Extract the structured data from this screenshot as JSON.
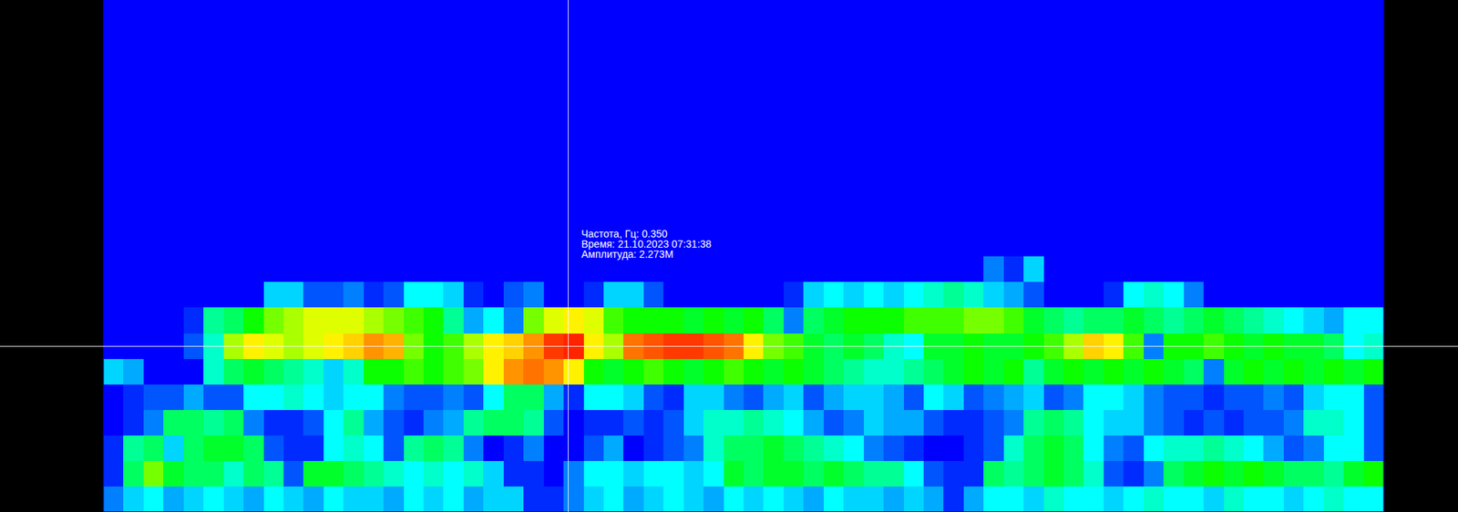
{
  "chart_data": {
    "type": "heatmap",
    "tick_labels": false,
    "x": [
      0,
      1,
      2,
      3,
      4,
      5,
      6,
      7,
      8,
      9,
      10,
      11,
      12,
      13,
      14,
      15,
      16,
      17,
      18,
      19,
      20,
      21,
      22,
      23,
      24,
      25,
      26,
      27,
      28,
      29,
      30,
      31,
      32,
      33,
      34,
      35,
      36,
      37,
      38,
      39,
      40,
      41,
      42,
      43,
      44,
      45,
      46,
      47,
      48,
      49,
      50,
      51,
      52,
      53,
      54,
      55,
      56,
      57,
      58,
      59,
      60,
      61,
      62,
      63
    ],
    "xlim": [
      0,
      64
    ],
    "y": [
      0.05,
      0.1,
      0.15,
      0.2,
      0.25,
      0.3,
      0.35,
      0.4,
      0.45,
      0.5,
      0.55,
      0.6,
      0.65,
      0.7,
      0.75,
      0.8,
      0.85,
      0.9,
      0.95,
      1.0
    ],
    "ylim": [
      0.025,
      1.025
    ],
    "zlim": [
      0,
      2.4
    ],
    "cells": [
      [
        0.3,
        0.5,
        0.6,
        0.4,
        0.5,
        0.6,
        0.5,
        0.4,
        0.6,
        0.5,
        0.4,
        0.6,
        0.5,
        0.5,
        0.4,
        0.6,
        0.5,
        0.6,
        0.4,
        0.5,
        0.5,
        0.1,
        0.1,
        0.3,
        0.5,
        0.6,
        0.4,
        0.5,
        0.6,
        0.5,
        0.4,
        0.6,
        0.5,
        0.6,
        0.5,
        0.4,
        0.6,
        0.5,
        0.5,
        0.4,
        0.5,
        0.4,
        0.1,
        0.4,
        0.6,
        0.6,
        0.5,
        0.7,
        0.6,
        0.6,
        0.5,
        0.6,
        0.7,
        0.6,
        0.6,
        0.5,
        0.7,
        0.6,
        0.6,
        0.5,
        0.6,
        0.7,
        0.6,
        0.6
      ],
      [
        0.1,
        0.9,
        1.3,
        1.0,
        0.9,
        0.9,
        0.7,
        0.9,
        0.8,
        0.2,
        1.0,
        1.0,
        0.9,
        0.8,
        0.7,
        0.6,
        0.7,
        0.6,
        0.7,
        0.5,
        0.1,
        0.1,
        0,
        0.3,
        0.6,
        0.6,
        0.5,
        0.6,
        0.6,
        0.5,
        0.6,
        1.0,
        0.9,
        1.0,
        1.0,
        0.9,
        1.0,
        0.9,
        0.8,
        0.8,
        0.6,
        0.2,
        0.1,
        0.1,
        0.9,
        0.8,
        0.9,
        1.0,
        0.9,
        0.7,
        0.2,
        0.1,
        0.3,
        0.9,
        1.0,
        1.1,
        1.0,
        1.1,
        1.0,
        0.9,
        0.9,
        0.8,
        1.0,
        1.1
      ],
      [
        0.1,
        0.8,
        0.9,
        0.5,
        0.9,
        1.0,
        1.0,
        0.9,
        0.2,
        0.1,
        0.1,
        0.6,
        0.7,
        0.6,
        0.2,
        0.8,
        0.9,
        0.8,
        0.3,
        0,
        0.1,
        0.3,
        0,
        0,
        0.2,
        0.4,
        0,
        0.1,
        0.2,
        0.3,
        0.7,
        0.9,
        0.9,
        1.0,
        0.9,
        0.8,
        0.7,
        0.6,
        0.3,
        0.2,
        0.1,
        0,
        0,
        0.1,
        0.2,
        0.7,
        0.9,
        1.0,
        0.9,
        0.6,
        0.3,
        0.2,
        0.6,
        0.7,
        0.7,
        0.8,
        0.7,
        0.6,
        0.4,
        0.2,
        0.3,
        0.6,
        0.6,
        0.2
      ],
      [
        0,
        0.1,
        0.3,
        0.9,
        0.9,
        0.8,
        0.9,
        0.3,
        0.1,
        0.1,
        0.2,
        0.6,
        0.8,
        0.4,
        0.2,
        0.1,
        0.3,
        0.4,
        0.8,
        0.9,
        0.9,
        0.8,
        0.2,
        0,
        0.1,
        0.1,
        0.2,
        0.1,
        0.2,
        0.5,
        0.7,
        0.7,
        0.8,
        0.7,
        0.6,
        0.4,
        0.2,
        0.3,
        0.5,
        0.4,
        0.4,
        0.2,
        0.1,
        0.1,
        0.2,
        0.3,
        0.8,
        0.9,
        0.8,
        0.6,
        0.5,
        0.5,
        0.3,
        0.2,
        0.1,
        0.2,
        0.1,
        0.2,
        0.2,
        0.3,
        0.7,
        0.7,
        0.6,
        0.2
      ],
      [
        0,
        0.1,
        0.2,
        0.2,
        0.4,
        0.2,
        0.2,
        0.6,
        0.6,
        0.7,
        0.6,
        0.5,
        0.6,
        0.6,
        0.3,
        0.2,
        0.2,
        0.3,
        0.2,
        0.6,
        0.9,
        0.9,
        0.4,
        0.1,
        0.6,
        0.6,
        0.5,
        0.2,
        0.1,
        0.5,
        0.5,
        0.3,
        0.2,
        0.4,
        0.5,
        0.2,
        0.4,
        0.5,
        0.5,
        0.4,
        0.2,
        0.6,
        0.5,
        0.2,
        0.3,
        0.4,
        0.5,
        0.2,
        0.3,
        0.6,
        0.6,
        0.5,
        0.3,
        0.2,
        0.2,
        0.1,
        0.2,
        0.2,
        0.3,
        0.2,
        0.5,
        0.6,
        0.6,
        0.2
      ],
      [
        0.5,
        0.4,
        0,
        0,
        0,
        0.7,
        0.9,
        1.0,
        0.9,
        0.8,
        0.7,
        0.5,
        0.7,
        1.1,
        1.1,
        1.2,
        1.1,
        1.2,
        1.3,
        1.6,
        1.9,
        2.0,
        1.9,
        1.6,
        1.1,
        1.0,
        1.1,
        1.2,
        1.1,
        1.0,
        1.1,
        1.2,
        1.1,
        1.0,
        1.1,
        1.0,
        0.9,
        0.8,
        0.7,
        0.7,
        0.8,
        0.9,
        1.0,
        1.1,
        1.0,
        1.1,
        0.8,
        1.0,
        1.1,
        1.0,
        1.1,
        1.0,
        1.1,
        1.0,
        0.9,
        0.3,
        1.0,
        1.1,
        1.0,
        1.1,
        1.0,
        1.1,
        1.0,
        1.1
      ],
      [
        0,
        0,
        0,
        0,
        0.2,
        0.7,
        1.4,
        1.6,
        1.5,
        1.4,
        1.5,
        1.6,
        1.7,
        1.9,
        1.8,
        1.3,
        1.1,
        1.2,
        1.4,
        1.6,
        1.7,
        1.9,
        2.2,
        2.273,
        1.6,
        1.4,
        2.0,
        2.1,
        2.2,
        2.2,
        2.1,
        2.0,
        1.6,
        1.3,
        1.2,
        1.0,
        0.9,
        1.0,
        0.9,
        0.7,
        0.6,
        1.0,
        1.0,
        1.1,
        1.0,
        1.0,
        1.1,
        1.2,
        1.4,
        1.7,
        1.6,
        1.2,
        0.3,
        1.1,
        1.1,
        1.2,
        1.1,
        1.0,
        1.1,
        1.0,
        1.0,
        0.9,
        0.6,
        0.7
      ],
      [
        0,
        0,
        0,
        0,
        0.1,
        0.8,
        0.9,
        1.1,
        1.3,
        1.4,
        1.5,
        1.5,
        1.5,
        1.4,
        1.3,
        1.2,
        1.1,
        0.8,
        0.4,
        0.6,
        0.3,
        1.3,
        1.5,
        1.6,
        1.5,
        1.2,
        1.1,
        1.1,
        1.1,
        1.0,
        1.1,
        1.0,
        1.1,
        0.9,
        0.3,
        0.9,
        1.0,
        1.1,
        1.1,
        1.1,
        1.2,
        1.2,
        1.2,
        1.3,
        1.3,
        1.2,
        1.0,
        0.9,
        0.8,
        0.9,
        0.9,
        1.0,
        0.9,
        0.8,
        0.9,
        1.0,
        0.9,
        0.8,
        0.7,
        0.6,
        0.5,
        0.4,
        0.6,
        0.6
      ],
      [
        0,
        0,
        0,
        0,
        0,
        0,
        0,
        0,
        0.5,
        0.5,
        0.2,
        0.2,
        0.3,
        0.1,
        0.2,
        0.6,
        0.6,
        0.5,
        0.1,
        0,
        0.2,
        0.3,
        0,
        0,
        0.1,
        0.5,
        0.5,
        0.2,
        0,
        0,
        0,
        0,
        0,
        0,
        0.1,
        0.5,
        0.6,
        0.5,
        0.6,
        0.5,
        0.6,
        0.7,
        0.8,
        0.7,
        0.5,
        0.4,
        0.2,
        0,
        0,
        0,
        0.1,
        0.6,
        0.7,
        0.6,
        0.3,
        0,
        0,
        0,
        0,
        0,
        0,
        0,
        0,
        0
      ],
      [
        0,
        0,
        0,
        0,
        0,
        0,
        0,
        0,
        0,
        0,
        0,
        0,
        0,
        0,
        0,
        0,
        0,
        0,
        0,
        0,
        0,
        0,
        0,
        0,
        0,
        0,
        0,
        0,
        0,
        0,
        0,
        0,
        0,
        0,
        0,
        0,
        0,
        0,
        0,
        0,
        0,
        0,
        0,
        0,
        0.3,
        0.1,
        0.5,
        0,
        0,
        0,
        0,
        0,
        0,
        0,
        0,
        0,
        0,
        0,
        0,
        0,
        0,
        0,
        0,
        0
      ],
      [
        0,
        0,
        0,
        0,
        0,
        0,
        0,
        0,
        0,
        0,
        0,
        0,
        0,
        0,
        0,
        0,
        0,
        0,
        0,
        0,
        0,
        0,
        0,
        0,
        0,
        0,
        0,
        0,
        0,
        0,
        0,
        0,
        0,
        0,
        0,
        0,
        0,
        0,
        0,
        0,
        0,
        0,
        0,
        0,
        0,
        0,
        0,
        0,
        0,
        0,
        0,
        0,
        0,
        0,
        0,
        0,
        0,
        0,
        0,
        0,
        0,
        0,
        0,
        0
      ],
      [
        0,
        0,
        0,
        0,
        0,
        0,
        0,
        0,
        0,
        0,
        0,
        0,
        0,
        0,
        0,
        0,
        0,
        0,
        0,
        0,
        0,
        0,
        0,
        0,
        0,
        0,
        0,
        0,
        0,
        0,
        0,
        0,
        0,
        0,
        0,
        0,
        0,
        0,
        0,
        0,
        0,
        0,
        0,
        0,
        0,
        0,
        0,
        0,
        0,
        0,
        0,
        0,
        0,
        0,
        0,
        0,
        0,
        0,
        0,
        0,
        0,
        0,
        0,
        0
      ],
      [
        0,
        0,
        0,
        0,
        0,
        0,
        0,
        0,
        0,
        0,
        0,
        0,
        0,
        0,
        0,
        0,
        0,
        0,
        0,
        0,
        0,
        0,
        0,
        0,
        0,
        0,
        0,
        0,
        0,
        0,
        0,
        0,
        0,
        0,
        0,
        0,
        0,
        0,
        0,
        0,
        0,
        0,
        0,
        0,
        0,
        0,
        0,
        0,
        0,
        0,
        0,
        0,
        0,
        0,
        0,
        0,
        0,
        0,
        0,
        0,
        0,
        0,
        0,
        0
      ],
      [
        0,
        0,
        0,
        0,
        0,
        0,
        0,
        0,
        0,
        0,
        0,
        0,
        0,
        0,
        0,
        0,
        0,
        0,
        0,
        0,
        0,
        0,
        0,
        0,
        0,
        0,
        0,
        0,
        0,
        0,
        0,
        0,
        0,
        0,
        0,
        0,
        0,
        0,
        0,
        0,
        0,
        0,
        0,
        0,
        0,
        0,
        0,
        0,
        0,
        0,
        0,
        0,
        0,
        0,
        0,
        0,
        0,
        0,
        0,
        0,
        0,
        0,
        0,
        0
      ],
      [
        0,
        0,
        0,
        0,
        0,
        0,
        0,
        0,
        0,
        0,
        0,
        0,
        0,
        0,
        0,
        0,
        0,
        0,
        0,
        0,
        0,
        0,
        0,
        0,
        0,
        0,
        0,
        0,
        0,
        0,
        0,
        0,
        0,
        0,
        0,
        0,
        0,
        0,
        0,
        0,
        0,
        0,
        0,
        0,
        0,
        0,
        0,
        0,
        0,
        0,
        0,
        0,
        0,
        0,
        0,
        0,
        0,
        0,
        0,
        0,
        0,
        0,
        0,
        0
      ],
      [
        0,
        0,
        0,
        0,
        0,
        0,
        0,
        0,
        0,
        0,
        0,
        0,
        0,
        0,
        0,
        0,
        0,
        0,
        0,
        0,
        0,
        0,
        0,
        0,
        0,
        0,
        0,
        0,
        0,
        0,
        0,
        0,
        0,
        0,
        0,
        0,
        0,
        0,
        0,
        0,
        0,
        0,
        0,
        0,
        0,
        0,
        0,
        0,
        0,
        0,
        0,
        0,
        0,
        0,
        0,
        0,
        0,
        0,
        0,
        0,
        0,
        0,
        0,
        0
      ],
      [
        0,
        0,
        0,
        0,
        0,
        0,
        0,
        0,
        0,
        0,
        0,
        0,
        0,
        0,
        0,
        0,
        0,
        0,
        0,
        0,
        0,
        0,
        0,
        0,
        0,
        0,
        0,
        0,
        0,
        0,
        0,
        0,
        0,
        0,
        0,
        0,
        0,
        0,
        0,
        0,
        0,
        0,
        0,
        0,
        0,
        0,
        0,
        0,
        0,
        0,
        0,
        0,
        0,
        0,
        0,
        0,
        0,
        0,
        0,
        0,
        0,
        0,
        0,
        0
      ],
      [
        0,
        0,
        0,
        0,
        0,
        0,
        0,
        0,
        0,
        0,
        0,
        0,
        0,
        0,
        0,
        0,
        0,
        0,
        0,
        0,
        0,
        0,
        0,
        0,
        0,
        0,
        0,
        0,
        0,
        0,
        0,
        0,
        0,
        0,
        0,
        0,
        0,
        0,
        0,
        0,
        0,
        0,
        0,
        0,
        0,
        0,
        0,
        0,
        0,
        0,
        0,
        0,
        0,
        0,
        0,
        0,
        0,
        0,
        0,
        0,
        0,
        0,
        0,
        0
      ],
      [
        0,
        0,
        0,
        0,
        0,
        0,
        0,
        0,
        0,
        0,
        0,
        0,
        0,
        0,
        0,
        0,
        0,
        0,
        0,
        0,
        0,
        0,
        0,
        0,
        0,
        0,
        0,
        0,
        0,
        0,
        0,
        0,
        0,
        0,
        0,
        0,
        0,
        0,
        0,
        0,
        0,
        0,
        0,
        0,
        0,
        0,
        0,
        0,
        0,
        0,
        0,
        0,
        0,
        0,
        0,
        0,
        0,
        0,
        0,
        0,
        0,
        0,
        0,
        0
      ],
      [
        0,
        0,
        0,
        0,
        0,
        0,
        0,
        0,
        0,
        0,
        0,
        0,
        0,
        0,
        0,
        0,
        0,
        0,
        0,
        0,
        0,
        0,
        0,
        0,
        0,
        0,
        0,
        0,
        0,
        0,
        0,
        0,
        0,
        0,
        0,
        0,
        0,
        0,
        0,
        0,
        0,
        0,
        0,
        0,
        0,
        0,
        0,
        0,
        0,
        0,
        0,
        0,
        0,
        0,
        0,
        0,
        0,
        0,
        0,
        0,
        0,
        0,
        0,
        0
      ]
    ],
    "cursor": {
      "x": 23.2,
      "y": 0.35,
      "labels": [
        "Частота, Гц: 0.350",
        "Время: 21.10.2023 07:31:38",
        "Амплитуда: 2.273M"
      ]
    }
  }
}
